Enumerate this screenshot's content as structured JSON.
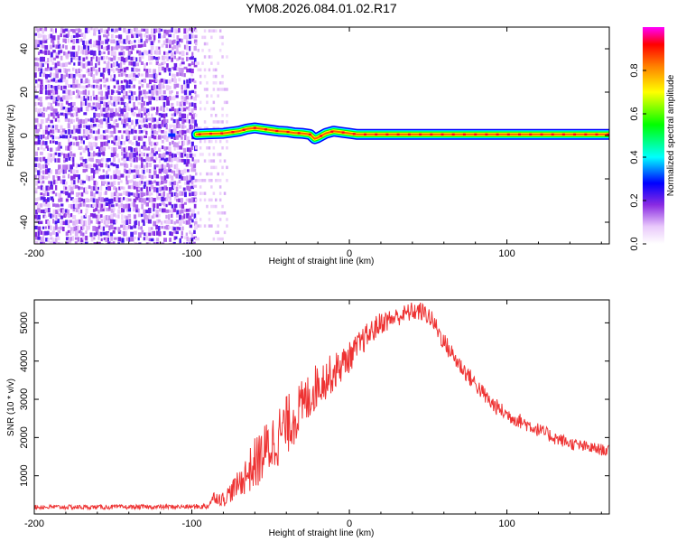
{
  "title": "YM08.2026.084.01.02.R17",
  "chart_data": [
    {
      "type": "heatmap",
      "name": "spectrogram",
      "xlabel": "Height of straight line (km)",
      "ylabel": "Frequency (Hz)",
      "xlim": [
        -200,
        165
      ],
      "ylim": [
        -50,
        50
      ],
      "xticks": [
        -200,
        -100,
        0,
        100
      ],
      "yticks": [
        40,
        20,
        0,
        -20,
        -40
      ],
      "colorbar": {
        "label": "Normalized spectral amplitude",
        "range": [
          0.0,
          1.0
        ],
        "ticks": [
          0.0,
          0.2,
          0.4,
          0.6,
          0.8
        ],
        "colors": [
          "#ffffff",
          "#e9c9fb",
          "#8a2be2",
          "#0000ff",
          "#00ffff",
          "#00ff00",
          "#ffff00",
          "#ff8000",
          "#ff0000",
          "#ff00ff"
        ]
      },
      "noise_region_km": [
        -200,
        -98
      ],
      "noise_fringe_km": [
        -98,
        -78
      ],
      "signal_band": {
        "x": [
          -97,
          -90,
          -80,
          -70,
          -65,
          -60,
          -55,
          -50,
          -45,
          -40,
          -35,
          -30,
          -25,
          -22,
          -20,
          -15,
          -10,
          -5,
          0,
          5,
          50,
          100,
          165
        ],
        "center_hz": [
          0.5,
          0.8,
          1.0,
          2.0,
          3.0,
          3.5,
          3.0,
          2.5,
          2.0,
          1.8,
          1.2,
          1.0,
          0.5,
          -1.5,
          -1.0,
          1.0,
          2.0,
          1.5,
          1.0,
          0.5,
          0.5,
          0.5,
          0.5
        ],
        "amplitude": [
          0.55,
          0.6,
          0.7,
          0.75,
          0.8,
          0.85,
          0.8,
          0.8,
          0.85,
          0.85,
          0.8,
          0.85,
          0.8,
          0.75,
          0.8,
          0.85,
          0.85,
          0.85,
          0.9,
          0.95,
          0.95,
          0.95,
          0.95
        ]
      }
    },
    {
      "type": "line",
      "name": "snr",
      "xlabel": "Height of straight line (km)",
      "ylabel": "SNR (10 * v/v)",
      "xlim": [
        -200,
        165
      ],
      "ylim": [
        0,
        5600
      ],
      "xticks": [
        -200,
        -100,
        0,
        100
      ],
      "yticks": [
        1000,
        2000,
        3000,
        4000,
        5000
      ],
      "color": "#ee3333",
      "series": [
        {
          "name": "SNR envelope",
          "x": [
            -200,
            -150,
            -100,
            -90,
            -86,
            -80,
            -70,
            -60,
            -50,
            -40,
            -30,
            -20,
            -10,
            0,
            10,
            20,
            30,
            40,
            45,
            50,
            55,
            60,
            70,
            80,
            90,
            100,
            110,
            120,
            130,
            140,
            150,
            165
          ],
          "y": [
            180,
            180,
            190,
            200,
            450,
            380,
            800,
            1300,
            1800,
            2300,
            2800,
            3400,
            3700,
            4100,
            4600,
            5000,
            5150,
            5300,
            5300,
            5200,
            4900,
            4500,
            3900,
            3400,
            2900,
            2600,
            2400,
            2200,
            2000,
            1850,
            1750,
            1650
          ],
          "spread": [
            60,
            60,
            60,
            80,
            150,
            200,
            350,
            700,
            800,
            800,
            700,
            600,
            500,
            400,
            350,
            300,
            250,
            250,
            250,
            250,
            250,
            250,
            250,
            220,
            220,
            200,
            200,
            180,
            180,
            160,
            160,
            150
          ]
        }
      ]
    }
  ]
}
